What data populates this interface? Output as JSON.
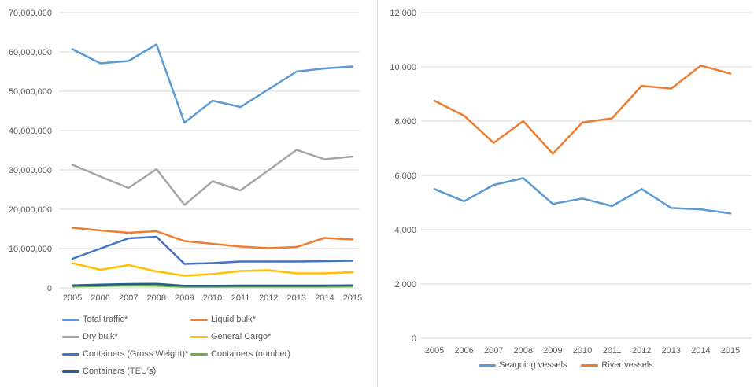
{
  "styles": {
    "background": "#FFFFFF",
    "grid_color": "#D9D9D9",
    "divider_color": "#D9D9D9",
    "axis_label_color": "#595959"
  },
  "chart_data": [
    {
      "type": "line",
      "title": "",
      "xlabel": "",
      "ylabel": "",
      "categories": [
        "2005",
        "2006",
        "2007",
        "2008",
        "2009",
        "2010",
        "2011",
        "2012",
        "2013",
        "2014",
        "2015"
      ],
      "ylim": [
        0,
        70000000
      ],
      "ytick_step": 10000000,
      "grid": true,
      "legend_position": "bottom-two-columns",
      "series": [
        {
          "name": "Total traffic*",
          "color": "#5B9BD5",
          "values": [
            60700000,
            57100000,
            57700000,
            61900000,
            42000000,
            47600000,
            46000000,
            50500000,
            55000000,
            55800000,
            56300000
          ]
        },
        {
          "name": "Liquid bulk*",
          "color": "#ED7D31",
          "values": [
            15300000,
            14600000,
            14000000,
            14400000,
            11900000,
            11200000,
            10500000,
            10100000,
            10400000,
            12700000,
            12300000
          ]
        },
        {
          "name": "Dry bulk*",
          "color": "#A5A5A5",
          "values": [
            31300000,
            28300000,
            25400000,
            30200000,
            21100000,
            27100000,
            24800000,
            29900000,
            35100000,
            32700000,
            33400000
          ]
        },
        {
          "name": "General Cargo*",
          "color": "#FFC000",
          "values": [
            6300000,
            4600000,
            5800000,
            4200000,
            3100000,
            3500000,
            4300000,
            4500000,
            3700000,
            3700000,
            4000000
          ]
        },
        {
          "name": "Containers (Gross Weight)*",
          "color": "#4472C4",
          "values": [
            7400000,
            10000000,
            12600000,
            13000000,
            6100000,
            6300000,
            6700000,
            6700000,
            6700000,
            6800000,
            6900000
          ]
        },
        {
          "name": "Containers (number)",
          "color": "#70AD47",
          "values": [
            350000,
            500000,
            600000,
            550000,
            300000,
            300000,
            350000,
            350000,
            350000,
            350000,
            400000
          ]
        },
        {
          "name": "Containers (TEU's)",
          "color": "#255E91",
          "values": [
            650000,
            850000,
            1000000,
            1050000,
            550000,
            550000,
            600000,
            600000,
            600000,
            600000,
            650000
          ]
        }
      ]
    },
    {
      "type": "line",
      "title": "",
      "xlabel": "",
      "ylabel": "",
      "categories": [
        "2005",
        "2006",
        "2007",
        "2008",
        "2009",
        "2010",
        "2011",
        "2012",
        "2013",
        "2014",
        "2015"
      ],
      "ylim": [
        0,
        12000
      ],
      "ytick_step": 2000,
      "grid": true,
      "legend_position": "bottom-center",
      "series": [
        {
          "name": "Seagoing vessels",
          "color": "#5B9BD5",
          "values": [
            5500,
            5050,
            5650,
            5900,
            4950,
            5150,
            4870,
            5500,
            4800,
            4750,
            4600
          ]
        },
        {
          "name": "River vessels",
          "color": "#ED7D31",
          "values": [
            8750,
            8200,
            7200,
            8000,
            6800,
            7950,
            8100,
            9300,
            9200,
            10050,
            9750
          ]
        }
      ]
    }
  ]
}
